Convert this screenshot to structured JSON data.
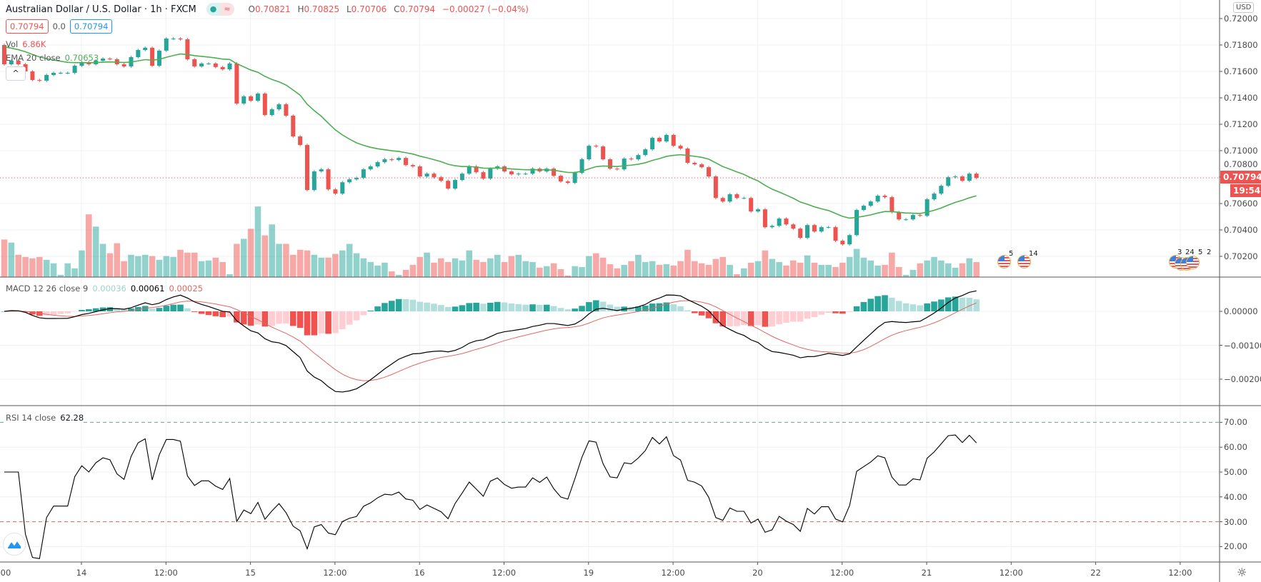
{
  "header": {
    "title": "Australian Dollar / U.S. Dollar · 1h · FXCM",
    "status_dot": "●",
    "status_wave": "≈",
    "ohlc": {
      "o_label": "O",
      "o": "0.70821",
      "h_label": "H",
      "h": "0.70825",
      "l_label": "L",
      "l": "0.70706",
      "c_label": "C",
      "c": "0.70794",
      "change": "−0.00027 (−0.04%)"
    }
  },
  "legend": {
    "bid": "0.70794",
    "spread": "0.0",
    "ask": "0.70794",
    "vol_label": "Vol",
    "vol_value": "6.86K",
    "ema_label": "EMA 20 close",
    "ema_value": "0.70653",
    "collapse": "^"
  },
  "macd_legend": {
    "label": "MACD 12 26 close 9",
    "hist": "0.00036",
    "macd": "0.00061",
    "signal": "0.00025"
  },
  "rsi_legend": {
    "label": "RSI 14 close",
    "value": "62.28"
  },
  "price_axis": {
    "currency": "USD",
    "labels": [
      "0.72000",
      "0.71800",
      "0.71600",
      "0.71400",
      "0.71200",
      "0.71000",
      "0.70800",
      "0.70600",
      "0.70400",
      "0.70200"
    ],
    "last_price": "0.70794",
    "countdown": "19:54"
  },
  "macd_axis": {
    "labels": [
      "0.00000",
      "−0.00100",
      "−0.00200"
    ]
  },
  "rsi_axis": {
    "labels": [
      "70.00",
      "60.00",
      "50.00",
      "40.00",
      "30.00",
      "20.00"
    ]
  },
  "time_axis": [
    "00",
    "14",
    "12:00",
    "15",
    "12:00",
    "16",
    "12:00",
    "19",
    "12:00",
    "20",
    "12:00",
    "21",
    "12:00",
    "22",
    "12:00"
  ],
  "events": {
    "single": [
      "5",
      "14"
    ],
    "cluster": [
      "3",
      "24",
      "5",
      "2"
    ]
  },
  "colors": {
    "up": "#26a69a",
    "down": "#ef5350",
    "ema": "#4caf50",
    "macd": "#000000",
    "signal": "#e0685f",
    "rsi": "#000000",
    "up_light": "#b2dfdb",
    "down_light": "#ffcdd2"
  },
  "chart_data": {
    "type": "candlestick",
    "interval": "1h",
    "first_open": 0.718,
    "closes": [
      0.71654,
      0.71681,
      0.71654,
      0.716,
      0.71535,
      0.7153,
      0.71573,
      0.71589,
      0.71589,
      0.71589,
      0.71643,
      0.7167,
      0.71654,
      0.71681,
      0.71697,
      0.71692,
      0.71654,
      0.71638,
      0.71708,
      0.71762,
      0.71779,
      0.71643,
      0.71757,
      0.71849,
      0.71849,
      0.71843,
      0.71692,
      0.71638,
      0.7166,
      0.7166,
      0.71633,
      0.71616,
      0.7166,
      0.71357,
      0.71411,
      0.71378,
      0.71432,
      0.7127,
      0.71313,
      0.71351,
      0.71265,
      0.71108,
      0.71043,
      0.70702,
      0.70843,
      0.70859,
      0.70707,
      0.70675,
      0.70761,
      0.70783,
      0.70794,
      0.70859,
      0.70881,
      0.70913,
      0.70935,
      0.70929,
      0.70945,
      0.70891,
      0.70881,
      0.70805,
      0.70826,
      0.70799,
      0.70772,
      0.70713,
      0.70778,
      0.70826,
      0.70881,
      0.70837,
      0.70789,
      0.70864,
      0.70881,
      0.70843,
      0.70821,
      0.70826,
      0.70826,
      0.70864,
      0.70843,
      0.70864,
      0.7081,
      0.70767,
      0.70756,
      0.70832,
      0.70935,
      0.71037,
      0.71032,
      0.70935,
      0.70864,
      0.70859,
      0.7094,
      0.70935,
      0.70967,
      0.7101,
      0.71097,
      0.7107,
      0.71119,
      0.71037,
      0.71016,
      0.70908,
      0.70897,
      0.70875,
      0.70805,
      0.70642,
      0.70615,
      0.7067,
      0.70642,
      0.70642,
      0.7054,
      0.70556,
      0.70421,
      0.70431,
      0.70486,
      0.70442,
      0.7041,
      0.7034,
      0.70437,
      0.70388,
      0.70421,
      0.70421,
      0.70318,
      0.70291,
      0.70361,
      0.70551,
      0.70583,
      0.70615,
      0.70659,
      0.70648,
      0.70534,
      0.7048,
      0.7048,
      0.70513,
      0.70507,
      0.70632,
      0.70675,
      0.70734,
      0.70799,
      0.70805,
      0.70772,
      0.70826,
      0.70794
    ],
    "volumes_k": [
      17.2,
      15.8,
      10.2,
      9.2,
      8.6,
      9.2,
      7.9,
      6.3,
      1.0,
      6.3,
      4.0,
      12.2,
      28.7,
      23.1,
      15.2,
      10.9,
      15.5,
      7.3,
      10.2,
      9.6,
      10.2,
      9.6,
      7.9,
      9.6,
      9.2,
      12.5,
      11.2,
      11.2,
      7.3,
      7.6,
      8.9,
      6.9,
      1.3,
      15.2,
      17.5,
      22.1,
      32.3,
      19.1,
      24.1,
      15.2,
      15.2,
      10.2,
      12.5,
      12.2,
      10.2,
      8.9,
      8.9,
      10.6,
      12.2,
      15.2,
      10.9,
      8.6,
      6.9,
      5.3,
      6.6,
      2.6,
      1.0,
      3.3,
      5.6,
      9.2,
      11.2,
      6.6,
      8.6,
      6.9,
      8.6,
      7.6,
      12.2,
      7.9,
      6.9,
      8.6,
      10.2,
      6.9,
      9.6,
      10.2,
      7.3,
      6.9,
      4.3,
      5.0,
      6.3,
      3.6,
      0.7,
      5.0,
      4.6,
      9.6,
      10.9,
      8.9,
      5.9,
      4.0,
      5.6,
      7.3,
      10.2,
      6.9,
      7.3,
      5.6,
      5.9,
      5.3,
      7.3,
      12.5,
      7.3,
      6.3,
      5.6,
      8.3,
      9.2,
      5.6,
      1.3,
      4.0,
      6.6,
      7.3,
      12.2,
      8.3,
      6.9,
      5.3,
      7.6,
      6.6,
      9.9,
      6.6,
      5.6,
      5.6,
      4.6,
      6.6,
      9.2,
      12.9,
      8.9,
      7.6,
      5.3,
      5.6,
      11.2,
      4.6,
      1.0,
      3.3,
      6.3,
      7.6,
      9.2,
      7.6,
      6.3,
      4.3,
      6.3,
      8.6,
      6.86
    ],
    "price_range": [
      0.7015,
      0.7215
    ],
    "indicators": {
      "ema_period": 20,
      "macd": [
        12,
        26,
        9
      ],
      "rsi_period": 14,
      "rsi_bands": [
        70,
        30
      ]
    },
    "macd_range": [
      -0.0028,
      0.001
    ],
    "rsi_range": [
      14,
      77
    ]
  }
}
